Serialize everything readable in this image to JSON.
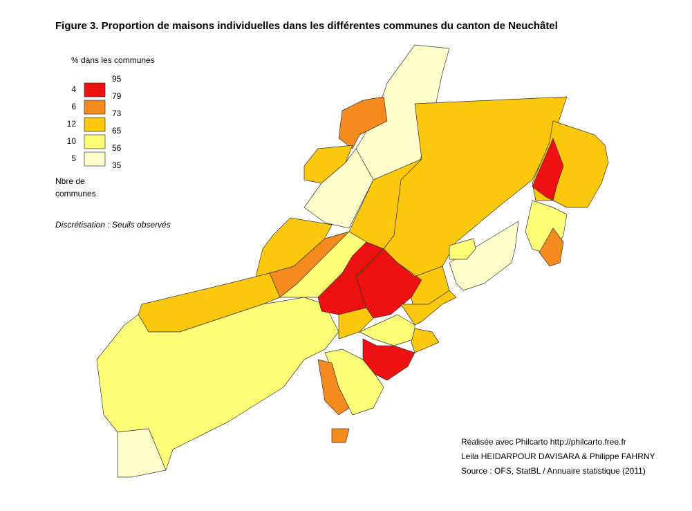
{
  "title": "Figure 3. Proportion de maisons individuelles dans les différentes communes du canton de Neuchâtel",
  "legend": {
    "title": "% dans les communes",
    "thresholds": [
      95,
      79,
      73,
      65,
      56,
      35
    ],
    "classes": [
      {
        "count": 4,
        "color": "#ee1111"
      },
      {
        "count": 6,
        "color": "#f58a1f"
      },
      {
        "count": 12,
        "color": "#fcc80d"
      },
      {
        "count": 10,
        "color": "#ffff77"
      },
      {
        "count": 5,
        "color": "#ffffcc"
      }
    ],
    "count_label": [
      "Nbre de",
      "communes"
    ]
  },
  "method": "Discrétisation : Seuils observés",
  "credits": [
    "Réalisée avec Philcarto http://philcarto.free.fr",
    "Leila HEIDARPOUR DAVISARA & Philippe FAHRNY",
    "Source : OFS, StatBL / Annuaire statistique (2011)"
  ]
}
